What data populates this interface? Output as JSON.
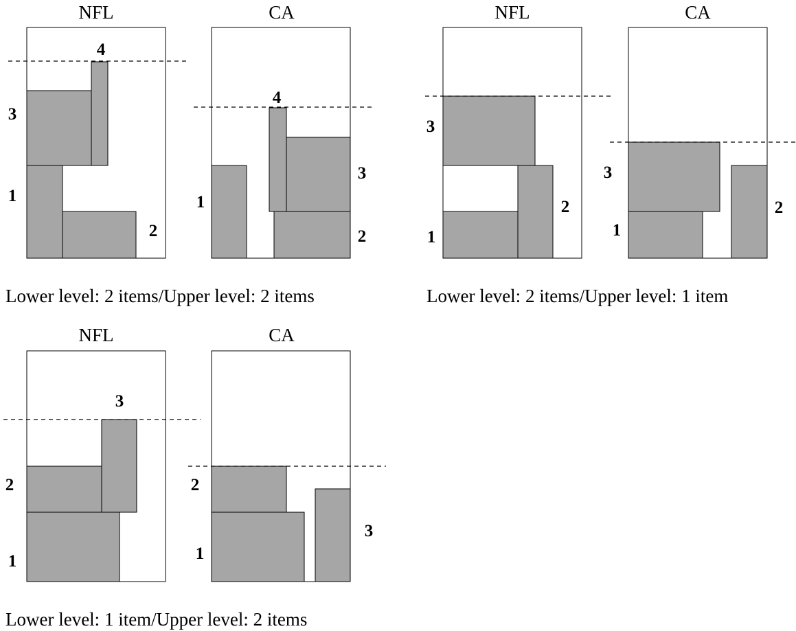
{
  "figure": {
    "panels": [
      {
        "caption": "Lower level: 2 items/Upper level: 2 items",
        "bins": [
          {
            "title": "NFL",
            "items": [
              {
                "label": "1"
              },
              {
                "label": "2"
              },
              {
                "label": "3"
              },
              {
                "label": "4"
              }
            ]
          },
          {
            "title": "CA",
            "items": [
              {
                "label": "1"
              },
              {
                "label": "2"
              },
              {
                "label": "3"
              },
              {
                "label": "4"
              }
            ]
          }
        ]
      },
      {
        "caption": "Lower level: 2 items/Upper level: 1 item",
        "bins": [
          {
            "title": "NFL",
            "items": [
              {
                "label": "1"
              },
              {
                "label": "2"
              },
              {
                "label": "3"
              }
            ]
          },
          {
            "title": "CA",
            "items": [
              {
                "label": "1"
              },
              {
                "label": "2"
              },
              {
                "label": "3"
              }
            ]
          }
        ]
      },
      {
        "caption": "Lower level: 1 item/Upper level: 2 items",
        "bins": [
          {
            "title": "NFL",
            "items": [
              {
                "label": "1"
              },
              {
                "label": "2"
              },
              {
                "label": "3"
              }
            ]
          },
          {
            "title": "CA",
            "items": [
              {
                "label": "1"
              },
              {
                "label": "2"
              },
              {
                "label": "3"
              }
            ]
          }
        ]
      }
    ]
  }
}
